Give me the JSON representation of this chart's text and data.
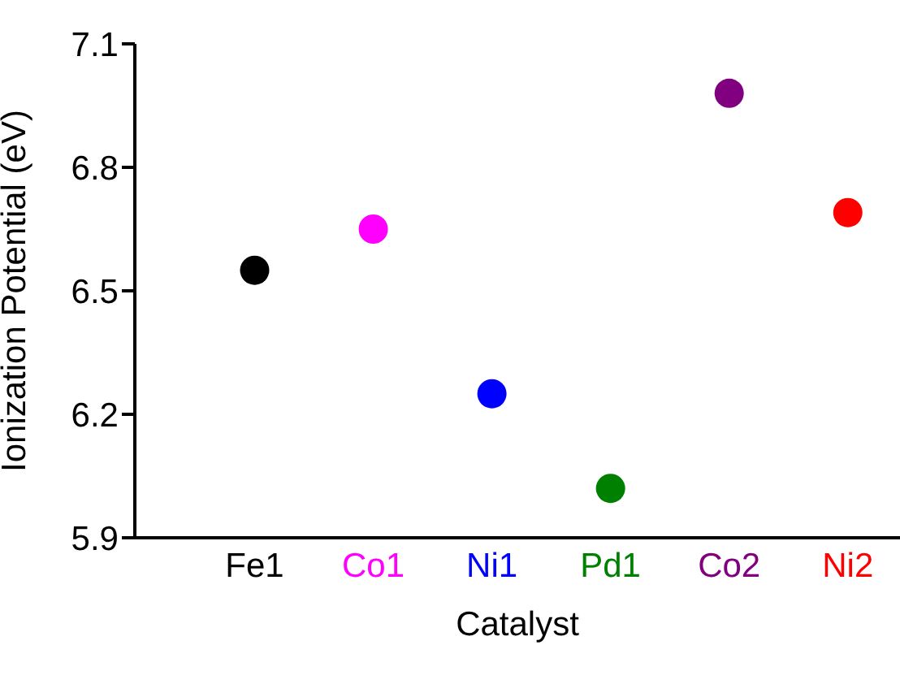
{
  "chart_data": {
    "type": "scatter",
    "xlabel": "Catalyst",
    "ylabel": "Ionization Potential (eV)",
    "categories": [
      "Fe1",
      "Co1",
      "Ni1",
      "Pd1",
      "Co2",
      "Ni2"
    ],
    "values": [
      6.55,
      6.65,
      6.25,
      6.02,
      6.98,
      6.69
    ],
    "colors": [
      "#000000",
      "#ff00ff",
      "#0000ff",
      "#008000",
      "#800080",
      "#ff0000"
    ],
    "ylim": [
      5.9,
      7.1
    ],
    "yticks": [
      5.9,
      6.2,
      6.5,
      6.8,
      7.1
    ],
    "grid": false,
    "legend": false,
    "marker": "circle"
  }
}
